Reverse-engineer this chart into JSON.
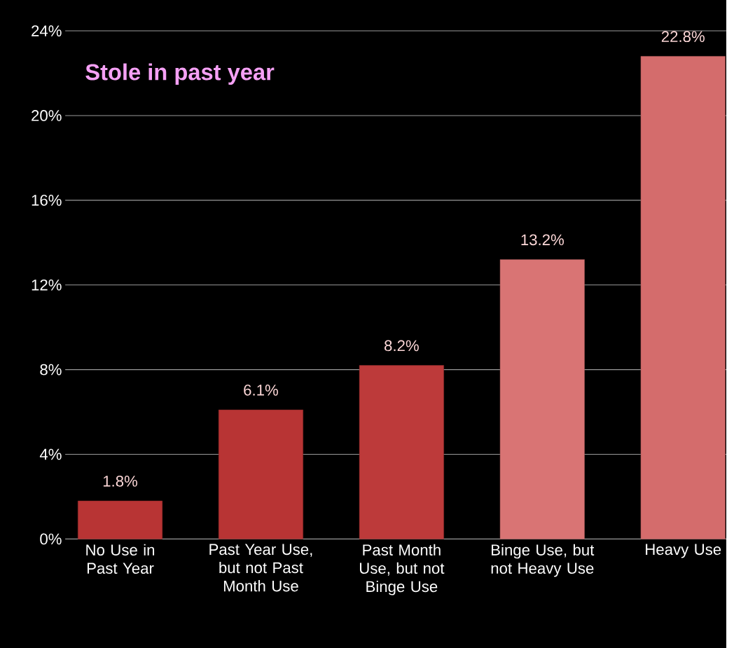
{
  "chart_data": {
    "type": "bar",
    "title": "Stole in past year",
    "categories": [
      "No Use in Past Year",
      "Past Year Use, but not Past Month Use",
      "Past Month Use, but not Binge Use",
      "Binge Use, but not Heavy Use",
      "Heavy Use"
    ],
    "values": [
      1.8,
      6.1,
      8.2,
      13.2,
      22.8
    ],
    "value_labels": [
      "1.8%",
      "6.1%",
      "8.2%",
      "13.2%",
      "22.8%"
    ],
    "colors": [
      "#b83434",
      "#b83434",
      "#bd3a3a",
      "#d97474",
      "#d46c6c"
    ],
    "ylim": [
      0,
      24
    ],
    "yticks": [
      {
        "value": 0,
        "label": "0%"
      },
      {
        "value": 4,
        "label": "4%"
      },
      {
        "value": 8,
        "label": "8%"
      },
      {
        "value": 12,
        "label": "12%"
      },
      {
        "value": 16,
        "label": "16%"
      },
      {
        "value": 20,
        "label": "20%"
      },
      {
        "value": 24,
        "label": "24%"
      }
    ],
    "grid": "y"
  }
}
